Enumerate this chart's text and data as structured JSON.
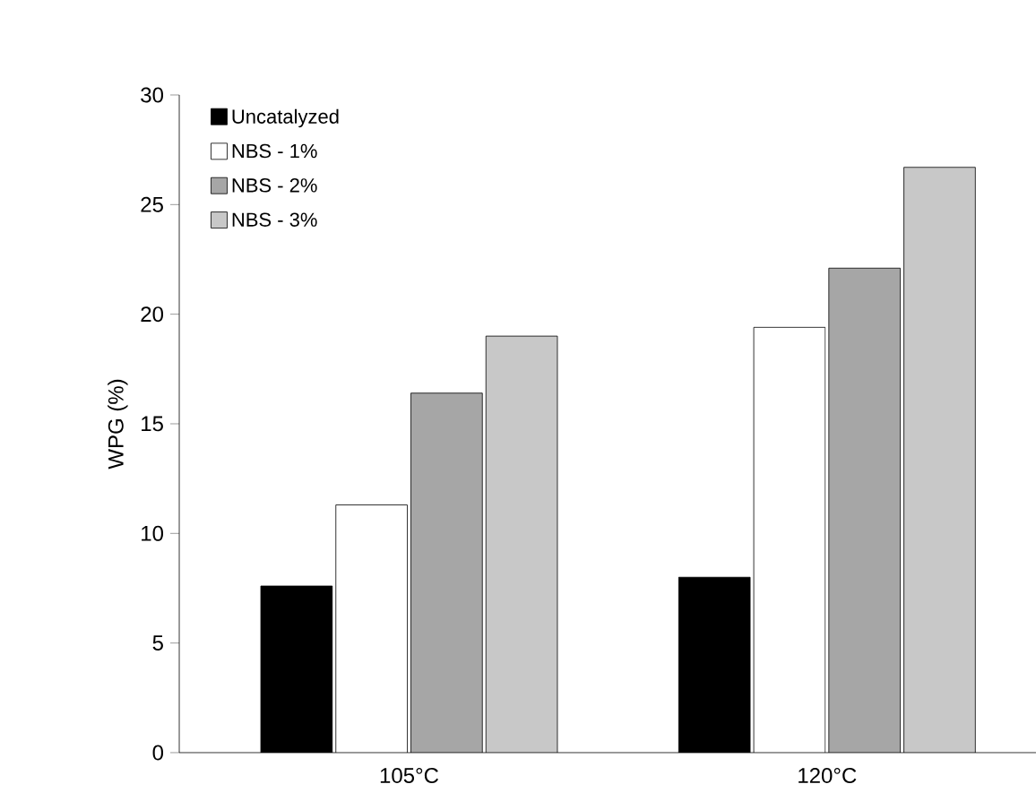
{
  "chart_data": {
    "type": "bar",
    "ylabel": "WPG (%)",
    "categories": [
      "105°C",
      "120°C"
    ],
    "series": [
      {
        "name": "Uncatalyzed",
        "color": "#000000",
        "values": [
          7.6,
          8.0
        ]
      },
      {
        "name": "NBS - 1%",
        "color": "#ffffff",
        "values": [
          11.3,
          19.4
        ]
      },
      {
        "name": "NBS - 2%",
        "color": "#a6a6a6",
        "values": [
          16.4,
          22.1
        ]
      },
      {
        "name": "NBS - 3%",
        "color": "#c8c8c8",
        "values": [
          19.0,
          26.7
        ]
      }
    ],
    "ylim": [
      0,
      30
    ],
    "yticks": [
      0,
      5,
      10,
      15,
      20,
      25,
      30
    ],
    "legend": "top left",
    "grid": false
  }
}
